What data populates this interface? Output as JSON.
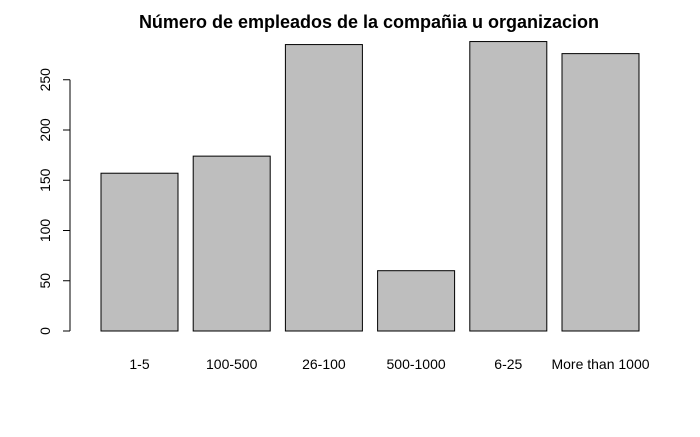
{
  "chart_data": {
    "type": "bar",
    "title": "Número de empleados de la compañia u organizacion",
    "xlabel": "",
    "ylabel": "",
    "categories": [
      "1-5",
      "100-500",
      "26-100",
      "500-1000",
      "6-25",
      "More than 1000"
    ],
    "values": [
      157,
      174,
      285,
      60,
      288,
      276
    ],
    "yticks": [
      "0",
      "50",
      "100",
      "150",
      "200",
      "250"
    ],
    "ylim": [
      0,
      288
    ],
    "grid": false,
    "bar_color": "#bebebe",
    "bar_border_color": "#000000"
  }
}
